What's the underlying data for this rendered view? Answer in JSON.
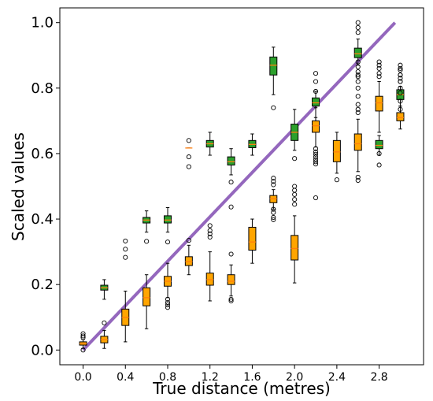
{
  "chart_data": {
    "type": "box",
    "title": "",
    "xlabel": "True distance (metres)",
    "ylabel": "Scaled values",
    "xlim": [
      -0.22,
      3.22
    ],
    "ylim": [
      -0.045,
      1.045
    ],
    "xticks": [
      "0.0",
      "0.4",
      "0.8",
      "1.2",
      "1.6",
      "2.0",
      "2.4",
      "2.8"
    ],
    "yticks": [
      "0.0",
      "0.2",
      "0.4",
      "0.6",
      "0.8",
      "1.0"
    ],
    "grid": false,
    "colors": {
      "green": "#2ca02c",
      "orange": "#ffa500",
      "median": "#ff7f0e",
      "line": "#9467bd"
    },
    "reference_line": {
      "x": [
        0.0,
        2.95
      ],
      "y": [
        0.0,
        1.0
      ]
    },
    "series": [
      {
        "color_key": "green",
        "boxes": [
          {
            "x": 0.2,
            "q1": 0.183,
            "med": 0.19,
            "q3": 0.198,
            "wlo": 0.155,
            "whi": 0.215,
            "outliers": []
          },
          {
            "x": 0.6,
            "q1": 0.388,
            "med": 0.397,
            "q3": 0.405,
            "wlo": 0.36,
            "whi": 0.425,
            "outliers": [
              0.332
            ]
          },
          {
            "x": 0.8,
            "q1": 0.388,
            "med": 0.397,
            "q3": 0.41,
            "wlo": 0.36,
            "whi": 0.435,
            "outliers": [
              0.33
            ]
          },
          {
            "x": 1.0,
            "q1": 0.617,
            "med": 0.617,
            "q3": 0.617,
            "wlo": 0.617,
            "whi": 0.617,
            "outliers": [
              0.64,
              0.59,
              0.56
            ]
          },
          {
            "x": 1.2,
            "q1": 0.62,
            "med": 0.63,
            "q3": 0.64,
            "wlo": 0.595,
            "whi": 0.665,
            "outliers": []
          },
          {
            "x": 1.4,
            "q1": 0.565,
            "med": 0.575,
            "q3": 0.59,
            "wlo": 0.535,
            "whi": 0.615,
            "outliers": [
              0.513,
              0.437
            ]
          },
          {
            "x": 1.6,
            "q1": 0.618,
            "med": 0.628,
            "q3": 0.64,
            "wlo": 0.595,
            "whi": 0.66,
            "outliers": []
          },
          {
            "x": 1.8,
            "q1": 0.84,
            "med": 0.87,
            "q3": 0.895,
            "wlo": 0.78,
            "whi": 0.925,
            "outliers": [
              0.74
            ]
          },
          {
            "x": 2.0,
            "q1": 0.64,
            "med": 0.665,
            "q3": 0.69,
            "wlo": 0.61,
            "whi": 0.735,
            "outliers": [
              0.585
            ]
          },
          {
            "x": 2.2,
            "q1": 0.745,
            "med": 0.755,
            "q3": 0.77,
            "wlo": 0.71,
            "whi": 0.79,
            "outliers": []
          },
          {
            "x": 2.6,
            "q1": 0.893,
            "med": 0.905,
            "q3": 0.922,
            "wlo": 0.87,
            "whi": 0.95,
            "outliers": [
              1.0,
              0.985,
              0.97,
              0.84
            ]
          },
          {
            "x": 2.8,
            "q1": 0.615,
            "med": 0.625,
            "q3": 0.64,
            "wlo": 0.595,
            "whi": 0.655,
            "outliers": []
          },
          {
            "x": 3.0,
            "q1": 0.765,
            "med": 0.78,
            "q3": 0.795,
            "wlo": 0.745,
            "whi": 0.805,
            "outliers": [
              0.87,
              0.855,
              0.84,
              0.83,
              0.82
            ]
          }
        ]
      },
      {
        "color_key": "orange",
        "boxes": [
          {
            "x": 0.0,
            "q1": 0.015,
            "med": 0.02,
            "q3": 0.025,
            "wlo": 0.005,
            "whi": 0.032,
            "outliers": [
              0.05,
              0.043,
              0.038,
              0.0
            ]
          },
          {
            "x": 0.2,
            "q1": 0.022,
            "med": 0.032,
            "q3": 0.042,
            "wlo": 0.005,
            "whi": 0.06,
            "outliers": [
              0.083
            ]
          },
          {
            "x": 0.4,
            "q1": 0.075,
            "med": 0.1,
            "q3": 0.125,
            "wlo": 0.025,
            "whi": 0.18,
            "outliers": [
              0.308,
              0.283,
              0.333
            ]
          },
          {
            "x": 0.6,
            "q1": 0.135,
            "med": 0.16,
            "q3": 0.19,
            "wlo": 0.065,
            "whi": 0.23,
            "outliers": []
          },
          {
            "x": 0.8,
            "q1": 0.195,
            "med": 0.21,
            "q3": 0.225,
            "wlo": 0.16,
            "whi": 0.265,
            "outliers": [
              0.155,
              0.145,
              0.138,
              0.13
            ]
          },
          {
            "x": 1.0,
            "q1": 0.258,
            "med": 0.27,
            "q3": 0.285,
            "wlo": 0.23,
            "whi": 0.32,
            "outliers": [
              0.335
            ]
          },
          {
            "x": 1.2,
            "q1": 0.198,
            "med": 0.215,
            "q3": 0.235,
            "wlo": 0.15,
            "whi": 0.3,
            "outliers": [
              0.38,
              0.365,
              0.355,
              0.345
            ]
          },
          {
            "x": 1.4,
            "q1": 0.2,
            "med": 0.21,
            "q3": 0.23,
            "wlo": 0.165,
            "whi": 0.26,
            "outliers": [
              0.293,
              0.155,
              0.15
            ]
          },
          {
            "x": 1.6,
            "q1": 0.305,
            "med": 0.33,
            "q3": 0.375,
            "wlo": 0.265,
            "whi": 0.4,
            "outliers": []
          },
          {
            "x": 1.8,
            "q1": 0.45,
            "med": 0.462,
            "q3": 0.472,
            "wlo": 0.43,
            "whi": 0.49,
            "outliers": [
              0.525,
              0.515,
              0.505,
              0.43,
              0.42,
              0.405,
              0.398
            ]
          },
          {
            "x": 2.0,
            "q1": 0.275,
            "med": 0.31,
            "q3": 0.35,
            "wlo": 0.205,
            "whi": 0.41,
            "outliers": [
              0.5,
              0.488,
              0.475,
              0.46,
              0.445
            ]
          },
          {
            "x": 2.2,
            "q1": 0.665,
            "med": 0.685,
            "q3": 0.7,
            "wlo": 0.62,
            "whi": 0.74,
            "outliers": [
              0.845,
              0.82,
              0.79,
              0.615,
              0.605,
              0.598,
              0.59,
              0.582,
              0.575,
              0.568,
              0.465
            ]
          },
          {
            "x": 2.4,
            "q1": 0.575,
            "med": 0.605,
            "q3": 0.64,
            "wlo": 0.54,
            "whi": 0.665,
            "outliers": [
              0.52
            ]
          },
          {
            "x": 2.6,
            "q1": 0.61,
            "med": 0.63,
            "q3": 0.66,
            "wlo": 0.545,
            "whi": 0.705,
            "outliers": [
              0.88,
              0.865,
              0.85,
              0.835,
              0.82,
              0.8,
              0.775,
              0.75,
              0.735,
              0.725,
              0.528,
              0.518
            ]
          },
          {
            "x": 2.8,
            "q1": 0.73,
            "med": 0.755,
            "q3": 0.775,
            "wlo": 0.665,
            "whi": 0.82,
            "outliers": [
              0.88,
              0.87,
              0.86,
              0.845,
              0.835,
              0.6,
              0.565
            ]
          },
          {
            "x": 3.0,
            "q1": 0.7,
            "med": 0.71,
            "q3": 0.725,
            "wlo": 0.675,
            "whi": 0.745,
            "outliers": [
              0.86,
              0.84,
              0.82,
              0.8,
              0.785,
              0.76,
              0.735
            ]
          }
        ]
      }
    ]
  }
}
